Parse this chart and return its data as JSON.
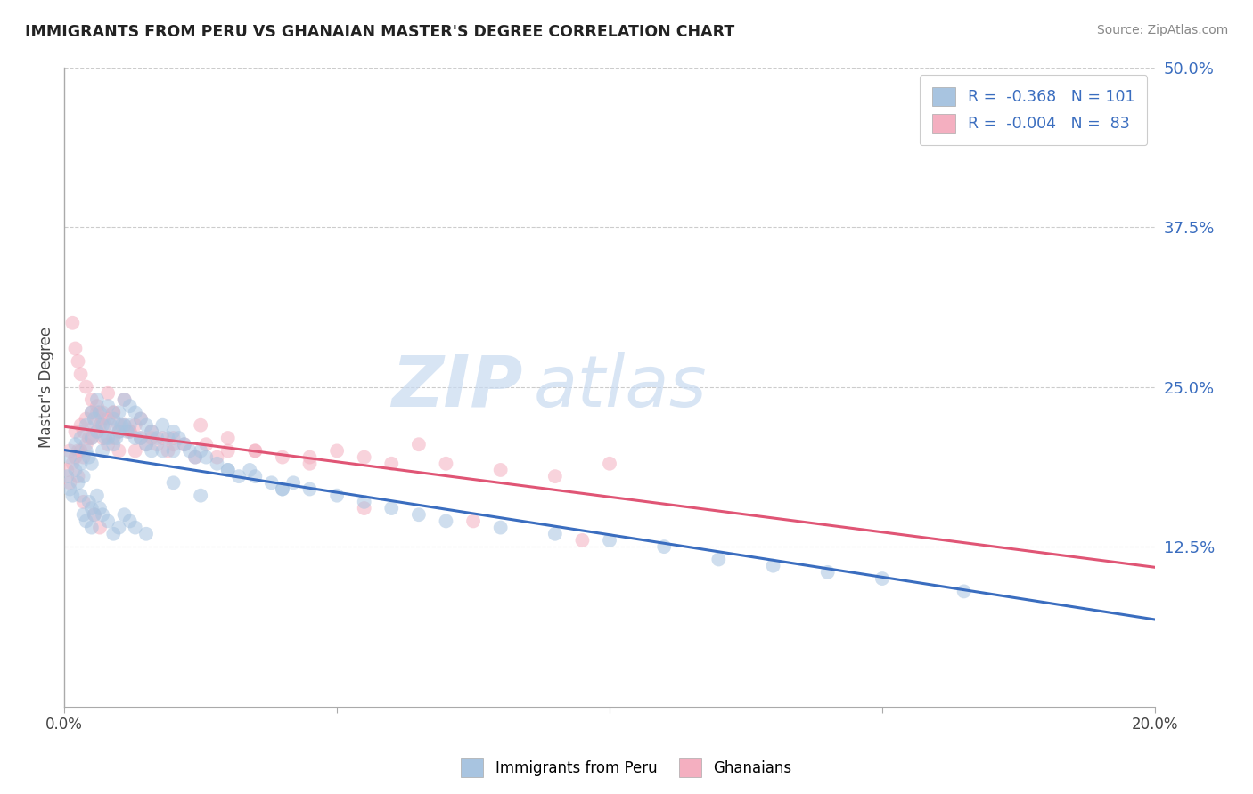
{
  "title": "IMMIGRANTS FROM PERU VS GHANAIAN MASTER'S DEGREE CORRELATION CHART",
  "source": "Source: ZipAtlas.com",
  "ylabel": "Master's Degree",
  "legend_bottom": [
    "Immigrants from Peru",
    "Ghanaians"
  ],
  "r_peru": -0.368,
  "n_peru": 101,
  "r_ghana": -0.004,
  "n_ghana": 83,
  "x_lim": [
    0.0,
    20.0
  ],
  "y_lim": [
    0.0,
    50.0
  ],
  "y_ticks": [
    12.5,
    25.0,
    37.5,
    50.0
  ],
  "x_ticks_labels": [
    "0.0%",
    "",
    "",
    "",
    "20.0%"
  ],
  "x_ticks_pos": [
    0,
    5,
    10,
    15,
    20
  ],
  "color_peru": "#a8c4e0",
  "color_ghana": "#f4afc0",
  "line_color_peru": "#3a6dbf",
  "line_color_ghana": "#e05575",
  "watermark_zip": "ZIP",
  "watermark_atlas": "atlas",
  "background_color": "#ffffff",
  "grid_color": "#cccccc",
  "scatter_alpha": 0.55,
  "scatter_size": 130,
  "peru_x": [
    0.05,
    0.1,
    0.1,
    0.15,
    0.2,
    0.2,
    0.25,
    0.3,
    0.3,
    0.35,
    0.4,
    0.4,
    0.45,
    0.5,
    0.5,
    0.5,
    0.55,
    0.6,
    0.6,
    0.65,
    0.7,
    0.7,
    0.75,
    0.8,
    0.8,
    0.85,
    0.9,
    0.9,
    0.95,
    1.0,
    1.0,
    1.05,
    1.1,
    1.1,
    1.15,
    1.2,
    1.2,
    1.3,
    1.3,
    1.4,
    1.4,
    1.5,
    1.5,
    1.6,
    1.6,
    1.7,
    1.8,
    1.8,
    1.9,
    2.0,
    2.0,
    2.1,
    2.2,
    2.3,
    2.4,
    2.5,
    2.6,
    2.8,
    3.0,
    3.2,
    3.4,
    3.5,
    3.8,
    4.0,
    4.2,
    4.5,
    5.0,
    5.5,
    6.0,
    6.5,
    7.0,
    8.0,
    9.0,
    10.0,
    11.0,
    12.0,
    13.0,
    14.0,
    15.0,
    16.5,
    0.3,
    0.35,
    0.4,
    0.45,
    0.5,
    0.5,
    0.55,
    0.6,
    0.65,
    0.7,
    0.8,
    0.9,
    1.0,
    1.1,
    1.2,
    1.3,
    1.5,
    2.0,
    2.5,
    3.0,
    4.0
  ],
  "peru_y": [
    18.0,
    19.5,
    17.0,
    16.5,
    20.5,
    18.5,
    17.5,
    21.0,
    19.0,
    18.0,
    22.0,
    20.0,
    19.5,
    23.0,
    21.0,
    19.0,
    22.5,
    24.0,
    21.5,
    23.0,
    22.0,
    20.0,
    21.0,
    23.5,
    21.0,
    22.0,
    22.5,
    20.5,
    21.0,
    23.0,
    21.5,
    22.0,
    24.0,
    22.0,
    21.5,
    23.5,
    22.0,
    23.0,
    21.0,
    22.5,
    21.0,
    22.0,
    20.5,
    21.5,
    20.0,
    21.0,
    22.0,
    20.0,
    21.0,
    21.5,
    20.0,
    21.0,
    20.5,
    20.0,
    19.5,
    20.0,
    19.5,
    19.0,
    18.5,
    18.0,
    18.5,
    18.0,
    17.5,
    17.0,
    17.5,
    17.0,
    16.5,
    16.0,
    15.5,
    15.0,
    14.5,
    14.0,
    13.5,
    13.0,
    12.5,
    11.5,
    11.0,
    10.5,
    10.0,
    9.0,
    16.5,
    15.0,
    14.5,
    16.0,
    15.5,
    14.0,
    15.0,
    16.5,
    15.5,
    15.0,
    14.5,
    13.5,
    14.0,
    15.0,
    14.5,
    14.0,
    13.5,
    17.5,
    16.5,
    18.5,
    17.0
  ],
  "ghana_x": [
    0.05,
    0.1,
    0.1,
    0.15,
    0.2,
    0.2,
    0.25,
    0.25,
    0.3,
    0.3,
    0.35,
    0.35,
    0.4,
    0.4,
    0.45,
    0.5,
    0.5,
    0.55,
    0.6,
    0.6,
    0.65,
    0.7,
    0.7,
    0.75,
    0.8,
    0.8,
    0.9,
    0.9,
    1.0,
    1.0,
    1.1,
    1.2,
    1.3,
    1.3,
    1.4,
    1.5,
    1.6,
    1.7,
    1.8,
    1.9,
    2.0,
    2.2,
    2.4,
    2.6,
    2.8,
    3.0,
    3.5,
    4.0,
    4.5,
    5.0,
    5.5,
    6.0,
    6.5,
    7.0,
    8.0,
    9.0,
    10.0,
    0.15,
    0.2,
    0.25,
    0.3,
    0.4,
    0.5,
    0.6,
    0.7,
    0.8,
    0.9,
    1.0,
    1.1,
    1.2,
    1.4,
    1.6,
    2.0,
    2.5,
    3.0,
    3.5,
    4.5,
    5.5,
    7.5,
    9.5,
    0.35,
    0.55,
    0.65
  ],
  "ghana_y": [
    18.5,
    20.0,
    17.5,
    19.0,
    21.5,
    19.5,
    20.0,
    18.0,
    22.0,
    20.0,
    21.5,
    19.5,
    22.5,
    20.5,
    21.0,
    23.0,
    21.0,
    22.0,
    23.5,
    21.5,
    22.0,
    23.0,
    21.0,
    22.0,
    22.5,
    20.5,
    23.0,
    21.0,
    21.5,
    20.0,
    22.0,
    21.5,
    22.0,
    20.0,
    21.0,
    20.5,
    21.5,
    20.5,
    21.0,
    20.0,
    21.0,
    20.5,
    19.5,
    20.5,
    19.5,
    20.0,
    20.0,
    19.5,
    19.0,
    20.0,
    19.5,
    19.0,
    20.5,
    19.0,
    18.5,
    18.0,
    19.0,
    30.0,
    28.0,
    27.0,
    26.0,
    25.0,
    24.0,
    23.0,
    22.5,
    24.5,
    23.0,
    22.0,
    24.0,
    21.5,
    22.5,
    21.0,
    20.5,
    22.0,
    21.0,
    20.0,
    19.5,
    15.5,
    14.5,
    13.0,
    16.0,
    15.0,
    14.0
  ]
}
